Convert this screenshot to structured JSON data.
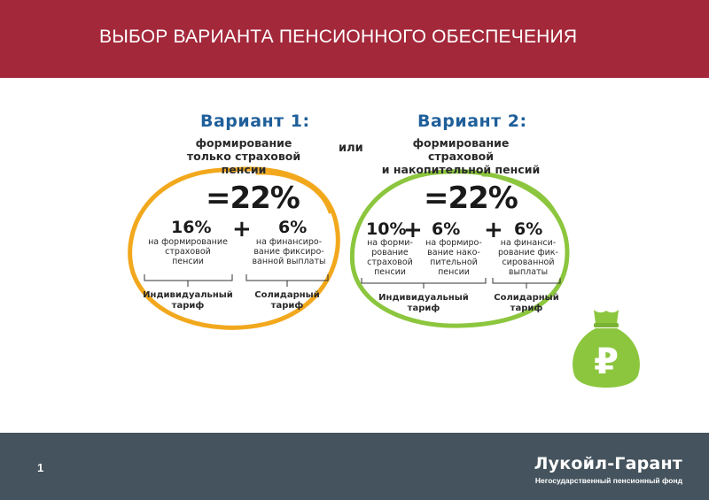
{
  "header": {
    "title": "ВЫБОР ВАРИАНТА ПЕНСИОННОГО ОБЕСПЕЧЕНИЯ"
  },
  "separator": "или",
  "variant1": {
    "heading": "Вариант 1:",
    "desc_line1": "формирование",
    "desc_line2": "только страховой пенсии",
    "total": "=22%",
    "parts": [
      {
        "pct": "16%",
        "lines": [
          "на формирование",
          "страховой",
          "пенсии"
        ]
      },
      {
        "pct": "6%",
        "lines": [
          "на финансиро-",
          "вание фиксиро-",
          "ванной выплаты"
        ]
      }
    ],
    "plus": "+",
    "tariffs": [
      {
        "lines": [
          "Индивидуальный",
          "тариф"
        ]
      },
      {
        "lines": [
          "Солидарный",
          "тариф"
        ]
      }
    ],
    "accent_color": "#f2a81d"
  },
  "variant2": {
    "heading": "Вариант 2:",
    "desc_line1": "формирование страховой",
    "desc_line2": "и накопительной пенсий",
    "total": "=22%",
    "parts": [
      {
        "pct": "10%",
        "lines": [
          "на форми-",
          "рование",
          "страховой",
          "пенсии"
        ]
      },
      {
        "pct": "6%",
        "lines": [
          "на формиро-",
          "вание нако-",
          "пительной",
          "пенсии"
        ]
      },
      {
        "pct": "6%",
        "lines": [
          "на финанси-",
          "рование фик-",
          "сированной",
          "выплаты"
        ]
      }
    ],
    "plus": "+",
    "tariffs": [
      {
        "lines": [
          "Индивидуальный",
          "тариф"
        ]
      },
      {
        "lines": [
          "Солидарный",
          "тариф"
        ]
      }
    ],
    "accent_color": "#8cc63e"
  },
  "icon": {
    "name": "money-bag-ruble-icon",
    "symbol": "₽",
    "color": "#8cc63e"
  },
  "footer": {
    "page_number": "1",
    "brand_name": "Лукойл-Гарант",
    "brand_subtitle": "Негосударственный пенсионный фонд"
  },
  "colors": {
    "header_bg": "#a3283a",
    "footer_bg": "#44535d",
    "heading_blue": "#1f5f9a"
  }
}
